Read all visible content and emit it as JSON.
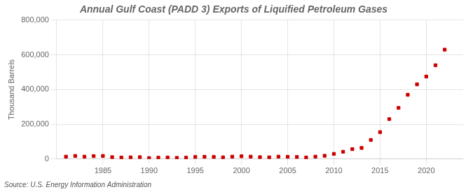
{
  "chart_data": {
    "type": "scatter",
    "title": "Annual Gulf Coast (PADD 3) Exports of Liquified Petroleum Gases",
    "ylabel": "Thousand Barrels",
    "annotations": [
      "Source: U.S. Energy Information Administration"
    ],
    "x": [
      1981,
      1982,
      1983,
      1984,
      1985,
      1986,
      1987,
      1988,
      1989,
      1990,
      1991,
      1992,
      1993,
      1994,
      1995,
      1996,
      1997,
      1998,
      1999,
      2000,
      2001,
      2002,
      2003,
      2004,
      2005,
      2006,
      2007,
      2008,
      2009,
      2010,
      2011,
      2012,
      2013,
      2014,
      2015,
      2016,
      2017,
      2018,
      2019,
      2020,
      2021,
      2022
    ],
    "values": [
      14000,
      18000,
      14000,
      17000,
      18000,
      11000,
      9000,
      10000,
      11000,
      6000,
      8000,
      9000,
      7000,
      8000,
      12000,
      13000,
      12000,
      10000,
      14000,
      16000,
      14000,
      11000,
      10000,
      14000,
      13000,
      12000,
      9000,
      14000,
      19000,
      30000,
      42000,
      57000,
      64000,
      110000,
      155000,
      230000,
      295000,
      370000,
      430000,
      475000,
      540000,
      630000
    ],
    "color": "#cc0000",
    "marker": "square",
    "xlim": [
      1980,
      2024
    ],
    "xticks": [
      1985,
      1990,
      1995,
      2000,
      2005,
      2010,
      2015,
      2020
    ],
    "ylim": [
      0,
      800000
    ],
    "yticks": [
      0,
      {
        "value": 200000,
        "label": "200,000"
      },
      {
        "value": 400000,
        "label": "400,000"
      },
      {
        "value": 600000,
        "label": "600,000"
      },
      {
        "value": 800000,
        "label": "800,000"
      }
    ],
    "grid": true
  }
}
